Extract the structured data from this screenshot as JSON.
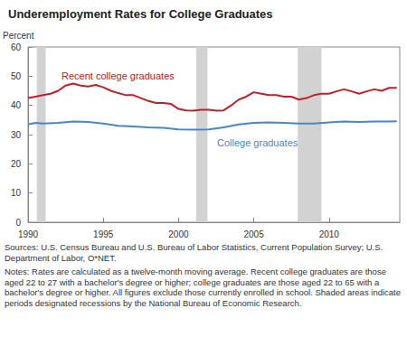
{
  "chart_data": {
    "type": "line",
    "title": "Underemployment Rates for College Graduates",
    "y_label": "Percent",
    "xlim": [
      1990,
      2014.7
    ],
    "xticks": [
      1990,
      1995,
      2000,
      2005,
      2010
    ],
    "ylim": [
      0,
      60
    ],
    "yticks": [
      0,
      10,
      20,
      30,
      40,
      50,
      60
    ],
    "grid": false,
    "recessions": [
      [
        1990.58,
        1991.17
      ],
      [
        2001.17,
        2001.92
      ],
      [
        2007.92,
        2009.5
      ]
    ],
    "series": [
      {
        "name": "Recent college graduates",
        "color": "#c0202a",
        "x": [
          1990,
          1990.5,
          1991,
          1991.5,
          1992,
          1992.5,
          1993,
          1993.5,
          1994,
          1994.5,
          1995,
          1995.5,
          1996,
          1996.5,
          1997,
          1997.5,
          1998,
          1998.5,
          1999,
          1999.5,
          2000,
          2000.5,
          2001,
          2001.5,
          2002,
          2002.5,
          2003,
          2003.5,
          2004,
          2004.5,
          2005,
          2005.5,
          2006,
          2006.5,
          2007,
          2007.5,
          2008,
          2008.5,
          2009,
          2009.5,
          2010,
          2010.5,
          2011,
          2011.5,
          2012,
          2012.5,
          2013,
          2013.5,
          2014,
          2014.5
        ],
        "values": [
          42.5,
          43,
          43.5,
          44,
          45,
          46.8,
          47.5,
          46.8,
          46.5,
          47,
          46.2,
          45,
          44.2,
          43.5,
          43.5,
          42.5,
          41.5,
          40.8,
          40.8,
          40.5,
          38.8,
          38.3,
          38.2,
          38.5,
          38.5,
          38.2,
          38.3,
          40,
          42,
          43,
          44.5,
          44,
          43.5,
          43.5,
          43,
          43,
          42,
          42.5,
          43.5,
          44,
          44,
          44.8,
          45.5,
          44.8,
          44,
          44.8,
          45.5,
          45,
          46,
          46
        ]
      },
      {
        "name": "College graduates",
        "color": "#4a86c5",
        "x": [
          1990,
          1990.5,
          1991,
          1992,
          1993,
          1994,
          1995,
          1996,
          1997,
          1998,
          1999,
          2000,
          2001,
          2002,
          2003,
          2004,
          2005,
          2006,
          2007,
          2008,
          2009,
          2010,
          2011,
          2012,
          2013,
          2014,
          2014.5
        ],
        "values": [
          33.5,
          34,
          33.8,
          34,
          34.5,
          34.3,
          33.8,
          33,
          32.8,
          32.5,
          32.3,
          31.8,
          31.7,
          31.8,
          32.5,
          33.5,
          34,
          34.2,
          34,
          33.8,
          33.8,
          34.2,
          34.5,
          34.3,
          34.5,
          34.5,
          34.6
        ]
      }
    ],
    "sources": "Sources: U.S. Census Bureau and U.S. Bureau of Labor Statistics, Current Population Survey; U.S. Department of Labor, O*NET.",
    "notes": "Notes: Rates are calculated as a twelve-month moving average. Recent college graduates are those aged 22 to 27 with a bachelor's degree or higher; college graduates are those aged 22 to 65 with a bachelor's degree or higher. All figures exclude those currently enrolled in school. Shaded areas indicate periods designated recessions by the National Bureau of Economic Research."
  }
}
